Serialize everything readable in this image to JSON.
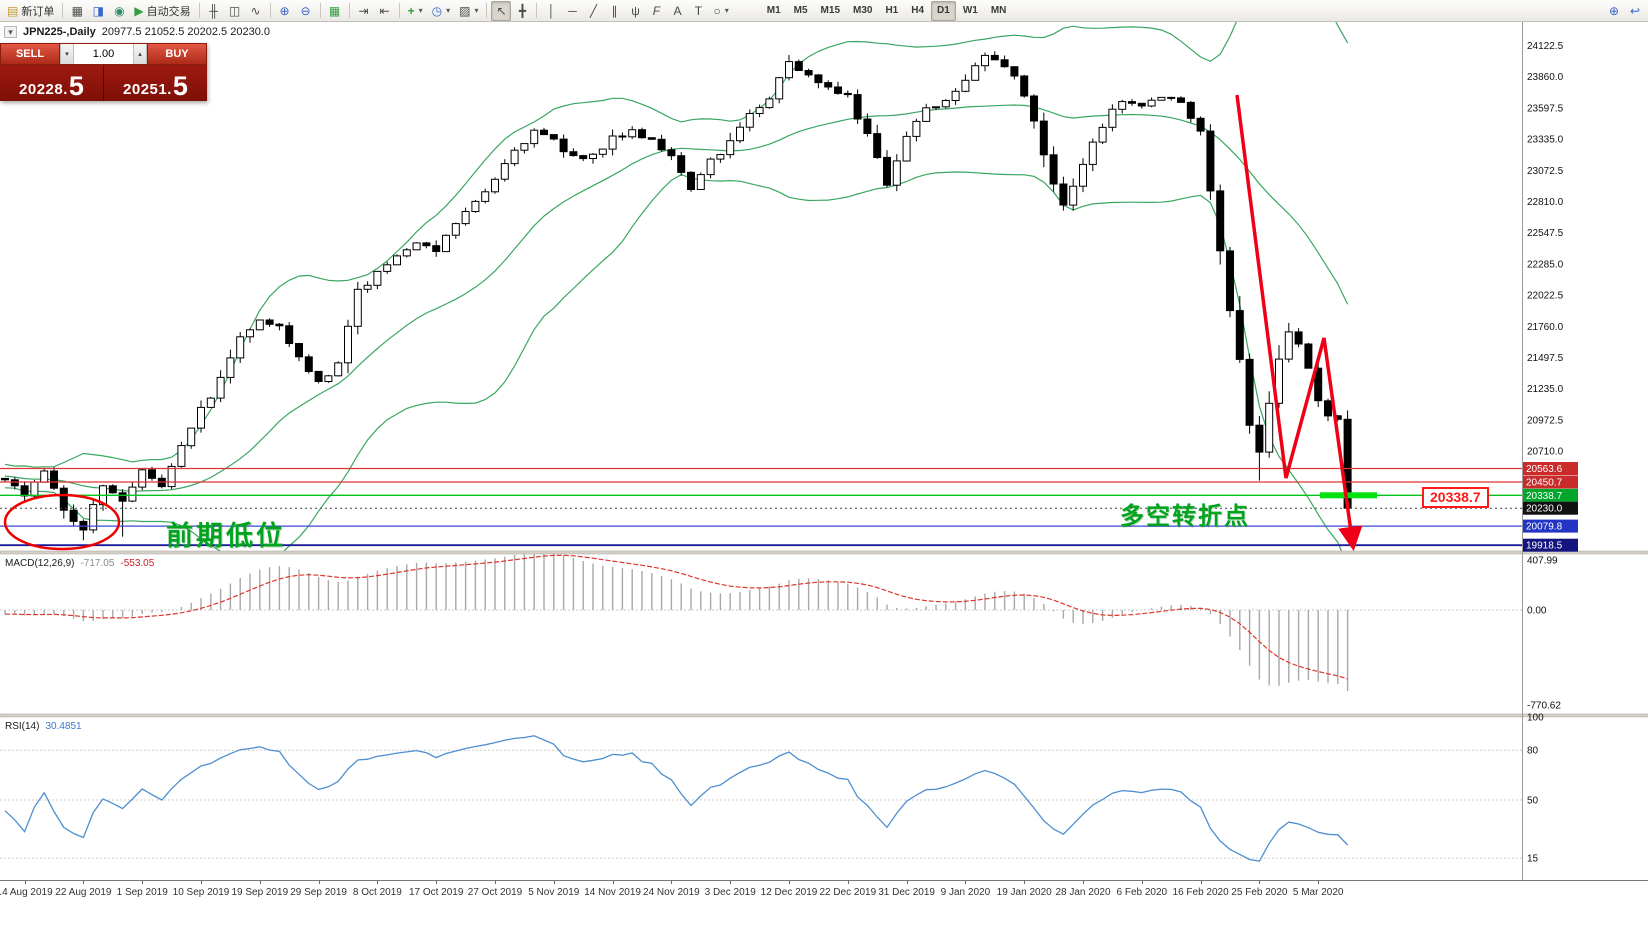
{
  "toolbar": {
    "new_order": "新订单",
    "autotrading": "自动交易",
    "timeframes": [
      "M1",
      "M5",
      "M15",
      "M30",
      "H1",
      "H4",
      "D1",
      "W1",
      "MN"
    ],
    "active_timeframe": "D1",
    "glyphs": {
      "new_order": "▤",
      "charts": "▦",
      "profiles": "◨",
      "history": "◉",
      "play": "▶",
      "bars": "╫",
      "candles": "◫",
      "line_chart": "∿",
      "zoom_in": "⊕",
      "zoom_out": "⊖",
      "tile": "▦",
      "autoscroll": "⇥",
      "shift": "⇤",
      "add_indicator": "+",
      "periods": "◷",
      "templates": "▨",
      "cursor": "↖",
      "crosshair": "╋",
      "vline": "│",
      "hline": "─",
      "trendline": "╱",
      "channel": "∥",
      "pitchfork": "ψ",
      "fibonacci": "F",
      "text": "A",
      "label": "T",
      "shapes": "○",
      "dropdown": "▾",
      "zoom_search": "⊕",
      "collapse": "↩",
      "spin_down": "▾",
      "spin_up": "▴"
    }
  },
  "symbol_header": {
    "name": "JPN225-,Daily",
    "ohlc": "20977.5 21052.5 20202.5 20230.0"
  },
  "trade_panel": {
    "sell_label": "SELL",
    "buy_label": "BUY",
    "volume": "1.00",
    "sell_price": "20228.",
    "sell_pip": "5",
    "buy_price": "20251.",
    "buy_pip": "5"
  },
  "annotations": {
    "prev_low": "前期低位",
    "turning_point": "多空转折点",
    "price_tag": "20338.7"
  },
  "macd_panel": {
    "title": "MACD(12,26,9)",
    "main_value": "-717.05",
    "signal_value": "-553.05",
    "scale_labels": [
      "407.99",
      "0.00",
      "-770.62"
    ]
  },
  "rsi_panel": {
    "title": "RSI(14)",
    "value": "30.4851",
    "scale_labels": [
      "100",
      "80",
      "50",
      "15"
    ]
  },
  "price_scale": {
    "grid_labels": [
      "24122.5",
      "23860.0",
      "23597.5",
      "23335.0",
      "23072.5",
      "22810.0",
      "22547.5",
      "22285.0",
      "22022.5",
      "21760.0",
      "21497.5",
      "21235.0",
      "20972.5",
      "20710.0"
    ]
  },
  "hlines": [
    {
      "label": "20563.6",
      "price": 20563.6,
      "color": "#e03333",
      "badge": "#c92a2a",
      "width": 1.2
    },
    {
      "label": "20450.7",
      "price": 20450.7,
      "color": "#e03333",
      "badge": "#c92a2a",
      "width": 1.2
    },
    {
      "label": "20338.7",
      "price": 20338.7,
      "color": "#00c41c",
      "badge": "#00a52c",
      "width": 1.4
    },
    {
      "label": "20230.0",
      "price": 20230.0,
      "color": "#444444",
      "badge": "#111111",
      "width": 1,
      "dash": "2 3"
    },
    {
      "label": "20079.8",
      "price": 20079.8,
      "color": "#3d49d0",
      "badge": "#2334c4",
      "width": 1.2
    },
    {
      "label": "19918.5",
      "price": 19918.5,
      "color": "#1a1a99",
      "badge": "#14147e",
      "width": 1.8
    }
  ],
  "time_axis": {
    "labels": [
      "14 Aug 2019",
      "22 Aug 2019",
      "1 Sep 2019",
      "10 Sep 2019",
      "19 Sep 2019",
      "29 Sep 2019",
      "8 Oct 2019",
      "17 Oct 2019",
      "27 Oct 2019",
      "5 Nov 2019",
      "14 Nov 2019",
      "24 Nov 2019",
      "3 Dec 2019",
      "12 Dec 2019",
      "22 Dec 2019",
      "31 Dec 2019",
      "9 Jan 2020",
      "19 Jan 2020",
      "28 Jan 2020",
      "6 Feb 2020",
      "16 Feb 2020",
      "25 Feb 2020",
      "5 Mar 2020"
    ]
  },
  "chart_data": {
    "type": "candlestick",
    "symbol": "JPN225-",
    "timeframe": "Daily",
    "visible_range": {
      "price_min": 19870,
      "price_max": 24320
    },
    "last_bar": {
      "open": 20977.5,
      "high": 21052.5,
      "low": 20202.5,
      "close": 20230.0
    },
    "bars_visible": 138,
    "close_anchors": [
      [
        -45,
        20600
      ],
      [
        -36,
        20740
      ],
      [
        -28,
        20520
      ],
      [
        -20,
        20640
      ],
      [
        -14,
        20480
      ],
      [
        -8,
        20560
      ],
      [
        -4,
        20420
      ],
      [
        0,
        20480
      ],
      [
        2,
        20340
      ],
      [
        4,
        20530
      ],
      [
        6,
        20230
      ],
      [
        8,
        20060
      ],
      [
        10,
        20420
      ],
      [
        12,
        20280
      ],
      [
        14,
        20560
      ],
      [
        16,
        20430
      ],
      [
        18,
        20780
      ],
      [
        20,
        21060
      ],
      [
        22,
        21310
      ],
      [
        24,
        21680
      ],
      [
        26,
        21840
      ],
      [
        28,
        21750
      ],
      [
        30,
        21480
      ],
      [
        32,
        21290
      ],
      [
        34,
        21430
      ],
      [
        36,
        22060
      ],
      [
        38,
        22210
      ],
      [
        40,
        22330
      ],
      [
        42,
        22490
      ],
      [
        44,
        22410
      ],
      [
        46,
        22640
      ],
      [
        48,
        22830
      ],
      [
        50,
        23010
      ],
      [
        52,
        23260
      ],
      [
        54,
        23390
      ],
      [
        56,
        23310
      ],
      [
        58,
        23190
      ],
      [
        60,
        23210
      ],
      [
        62,
        23330
      ],
      [
        64,
        23410
      ],
      [
        66,
        23340
      ],
      [
        68,
        23190
      ],
      [
        70,
        22880
      ],
      [
        72,
        23160
      ],
      [
        74,
        23310
      ],
      [
        76,
        23560
      ],
      [
        78,
        23690
      ],
      [
        80,
        23990
      ],
      [
        82,
        23860
      ],
      [
        84,
        23790
      ],
      [
        86,
        23710
      ],
      [
        88,
        23360
      ],
      [
        90,
        22960
      ],
      [
        92,
        23360
      ],
      [
        94,
        23610
      ],
      [
        96,
        23660
      ],
      [
        98,
        23860
      ],
      [
        100,
        24060
      ],
      [
        102,
        23960
      ],
      [
        104,
        23710
      ],
      [
        106,
        23210
      ],
      [
        108,
        22760
      ],
      [
        110,
        23110
      ],
      [
        112,
        23460
      ],
      [
        114,
        23660
      ],
      [
        116,
        23610
      ],
      [
        118,
        23710
      ],
      [
        120,
        23630
      ],
      [
        122,
        23390
      ],
      [
        123,
        22910
      ],
      [
        124,
        22360
      ],
      [
        125,
        21910
      ],
      [
        126,
        21460
      ],
      [
        127,
        20960
      ],
      [
        128,
        20700
      ],
      [
        129,
        21110
      ],
      [
        130,
        21510
      ],
      [
        131,
        21730
      ],
      [
        132,
        21610
      ],
      [
        133,
        21390
      ],
      [
        134,
        21160
      ],
      [
        135,
        21010
      ],
      [
        136,
        20977.5
      ],
      [
        137,
        20230
      ]
    ],
    "indicators": {
      "bollinger": {
        "period": 20,
        "deviation": 2,
        "color": "#3aa661"
      },
      "macd": {
        "fast": 12,
        "slow": 26,
        "signal": 9,
        "main": -717.05,
        "signal_value": -553.05,
        "range": [
          -845,
          455
        ]
      },
      "rsi": {
        "period": 14,
        "value": 30.4851,
        "levels": [
          80,
          50,
          15
        ],
        "range": [
          3,
          100
        ]
      }
    }
  }
}
